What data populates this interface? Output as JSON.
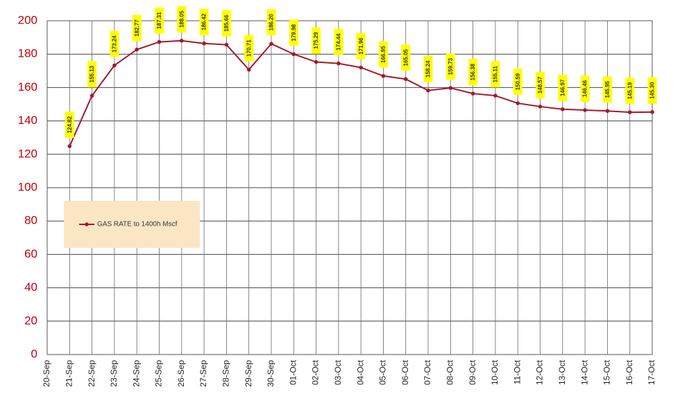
{
  "chart_data": {
    "type": "line",
    "categories": [
      "20-Sep",
      "21-Sep",
      "22-Sep",
      "23-Sep",
      "24-Sep",
      "25-Sep",
      "26-Sep",
      "27-Sep",
      "28-Sep",
      "29-Sep",
      "30-Sep",
      "01-Oct",
      "02-Oct",
      "03-Oct",
      "04-Oct",
      "05-Oct",
      "06-Oct",
      "07-Oct",
      "08-Oct",
      "09-Oct",
      "10-Oct",
      "11-Oct",
      "12-Oct",
      "13-Oct",
      "14-Oct",
      "15-Oct",
      "16-Oct",
      "17-Oct"
    ],
    "series": [
      {
        "name": "GAS RATE to 1400h Mscf",
        "color": "#a3182c",
        "values": [
          null,
          124.82,
          155.13,
          173.24,
          182.77,
          187.31,
          188.05,
          186.42,
          185.66,
          170.71,
          186.2,
          179.98,
          175.29,
          174.44,
          171.96,
          166.95,
          165.05,
          158.24,
          159.73,
          156.38,
          155.11,
          150.59,
          148.57,
          146.97,
          146.46,
          145.95,
          145.19,
          145.3
        ],
        "value_labels": [
          null,
          "124.82",
          "155.13",
          "173.24",
          "182.77",
          "187.31",
          "188.05",
          "186.42",
          "185.66",
          "170.71",
          "186.20",
          "179.98",
          "175.29",
          "174.44",
          "171.96",
          "166.95",
          "165.05",
          "158.24",
          "159.73",
          "156.38",
          "155.11",
          "150.59",
          "148.57",
          "146.97",
          "146.46",
          "145.95",
          "145.19",
          "145.30"
        ]
      }
    ],
    "ylim": [
      0,
      200
    ],
    "yticks": [
      0,
      20,
      40,
      60,
      80,
      100,
      120,
      140,
      160,
      180,
      200
    ],
    "grid": true,
    "legend": "center left"
  }
}
